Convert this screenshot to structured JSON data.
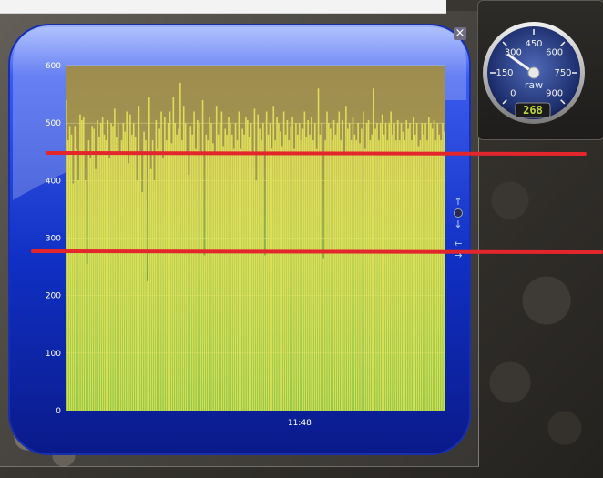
{
  "gauge": {
    "tick_labels": [
      "0",
      "150",
      "300",
      "450",
      "600",
      "750",
      "900"
    ],
    "unit": "raw",
    "value": 268
  },
  "colors": {
    "bar_fill": "#e3e35a",
    "guide_line": "#e3252c",
    "frame_blue": "#0f2bb8"
  },
  "icons": [
    "close-icon",
    "up-arrow-icon",
    "down-arrow-icon",
    "left-arrow-icon",
    "right-arrow-icon"
  ],
  "chart_data": {
    "type": "bar",
    "title": "",
    "xlabel": "",
    "ylabel": "",
    "ylim": [
      0,
      600
    ],
    "yticks": [
      0,
      100,
      200,
      300,
      400,
      500,
      600
    ],
    "grid": true,
    "x_tick_labels": [
      {
        "label": "11:48",
        "index": 135
      }
    ],
    "values": [
      540,
      470,
      495,
      480,
      395,
      495,
      455,
      400,
      515,
      505,
      510,
      400,
      255,
      470,
      440,
      495,
      490,
      420,
      505,
      475,
      500,
      510,
      480,
      470,
      505,
      440,
      500,
      495,
      525,
      475,
      500,
      450,
      470,
      500,
      485,
      520,
      430,
      515,
      480,
      500,
      475,
      400,
      530,
      450,
      380,
      485,
      470,
      225,
      545,
      420,
      470,
      400,
      505,
      455,
      490,
      520,
      440,
      510,
      470,
      500,
      520,
      465,
      545,
      500,
      480,
      490,
      570,
      470,
      530,
      500,
      450,
      410,
      495,
      480,
      520,
      455,
      505,
      500,
      445,
      540,
      270,
      480,
      470,
      510,
      500,
      465,
      445,
      530,
      480,
      500,
      520,
      460,
      490,
      480,
      510,
      500,
      480,
      455,
      500,
      470,
      520,
      455,
      490,
      480,
      510,
      505,
      475,
      500,
      450,
      525,
      400,
      515,
      490,
      470,
      500,
      270,
      520,
      480,
      500,
      455,
      530,
      470,
      510,
      500,
      485,
      460,
      520,
      480,
      505,
      470,
      495,
      510,
      455,
      500,
      480,
      500,
      470,
      490,
      520,
      475,
      505,
      480,
      510,
      470,
      500,
      455,
      560,
      480,
      500,
      265,
      470,
      520,
      500,
      490,
      470,
      505,
      480,
      500,
      520,
      470,
      505,
      450,
      530,
      490,
      500,
      470,
      510,
      480,
      470,
      500,
      465,
      490,
      520,
      455,
      500,
      505,
      470,
      480,
      560,
      490,
      500,
      470,
      500,
      515,
      480,
      500,
      470,
      500,
      520,
      480,
      500,
      470,
      505,
      470,
      500,
      485,
      470,
      505,
      490,
      500,
      470,
      510,
      480,
      500,
      460,
      470,
      500,
      480,
      500,
      470,
      510,
      500,
      490,
      505,
      470,
      500,
      480,
      470,
      500,
      485
    ]
  }
}
